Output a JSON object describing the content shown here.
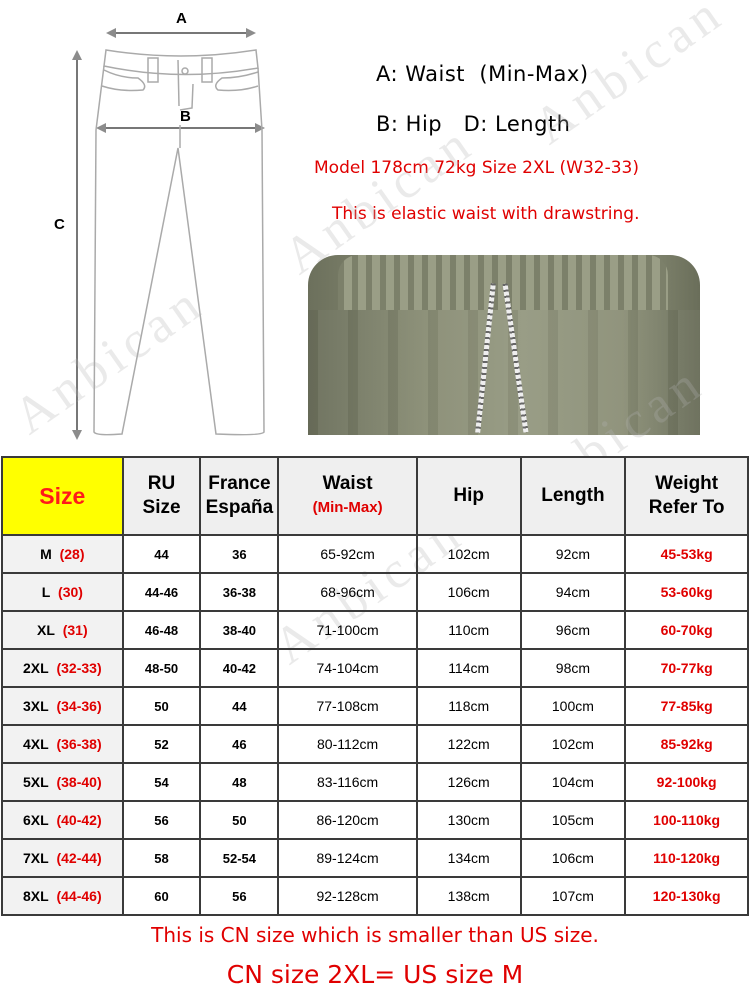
{
  "diagram": {
    "label_a": "A",
    "label_b": "B",
    "label_c": "C"
  },
  "info": {
    "line1": "A: Waist  (Min-Max)",
    "line2": "B: Hip   D: Length",
    "model": "Model 178cm 72kg Size 2XL (W32-33)",
    "elastic": "This is elastic waist with drawstring."
  },
  "watermark": "Anbican",
  "colors": {
    "accent_red": "#e00000",
    "size_header": "#ffff00",
    "pants_olive": "#8a8e76"
  },
  "table": {
    "headers": [
      {
        "line1": "Size"
      },
      {
        "line1": "RU",
        "line2": "Size"
      },
      {
        "line1": "France",
        "line2": "España"
      },
      {
        "line1": "Waist",
        "line2": "(Min-Max)"
      },
      {
        "line1": "Hip"
      },
      {
        "line1": "Length"
      },
      {
        "line1": "Weight",
        "line2": "Refer To"
      }
    ],
    "rows": [
      {
        "size": "M",
        "cn": "(28)",
        "ru": "44",
        "fr": "36",
        "waist": "65-92cm",
        "hip": "102cm",
        "length": "92cm",
        "weight": "45-53kg"
      },
      {
        "size": "L",
        "cn": "(30)",
        "ru": "44-46",
        "fr": "36-38",
        "waist": "68-96cm",
        "hip": "106cm",
        "length": "94cm",
        "weight": "53-60kg"
      },
      {
        "size": "XL",
        "cn": "(31)",
        "ru": "46-48",
        "fr": "38-40",
        "waist": "71-100cm",
        "hip": "110cm",
        "length": "96cm",
        "weight": "60-70kg"
      },
      {
        "size": "2XL",
        "cn": "(32-33)",
        "ru": "48-50",
        "fr": "40-42",
        "waist": "74-104cm",
        "hip": "114cm",
        "length": "98cm",
        "weight": "70-77kg"
      },
      {
        "size": "3XL",
        "cn": "(34-36)",
        "ru": "50",
        "fr": "44",
        "waist": "77-108cm",
        "hip": "118cm",
        "length": "100cm",
        "weight": "77-85kg"
      },
      {
        "size": "4XL",
        "cn": "(36-38)",
        "ru": "52",
        "fr": "46",
        "waist": "80-112cm",
        "hip": "122cm",
        "length": "102cm",
        "weight": "85-92kg"
      },
      {
        "size": "5XL",
        "cn": "(38-40)",
        "ru": "54",
        "fr": "48",
        "waist": "83-116cm",
        "hip": "126cm",
        "length": "104cm",
        "weight": "92-100kg"
      },
      {
        "size": "6XL",
        "cn": "(40-42)",
        "ru": "56",
        "fr": "50",
        "waist": "86-120cm",
        "hip": "130cm",
        "length": "105cm",
        "weight": "100-110kg"
      },
      {
        "size": "7XL",
        "cn": "(42-44)",
        "ru": "58",
        "fr": "52-54",
        "waist": "89-124cm",
        "hip": "134cm",
        "length": "106cm",
        "weight": "110-120kg"
      },
      {
        "size": "8XL",
        "cn": "(44-46)",
        "ru": "60",
        "fr": "56",
        "waist": "92-128cm",
        "hip": "138cm",
        "length": "107cm",
        "weight": "120-130kg"
      }
    ]
  },
  "footer": {
    "note1": "This is CN size which is smaller than US size.",
    "note2": "CN size 2XL= US size M"
  }
}
